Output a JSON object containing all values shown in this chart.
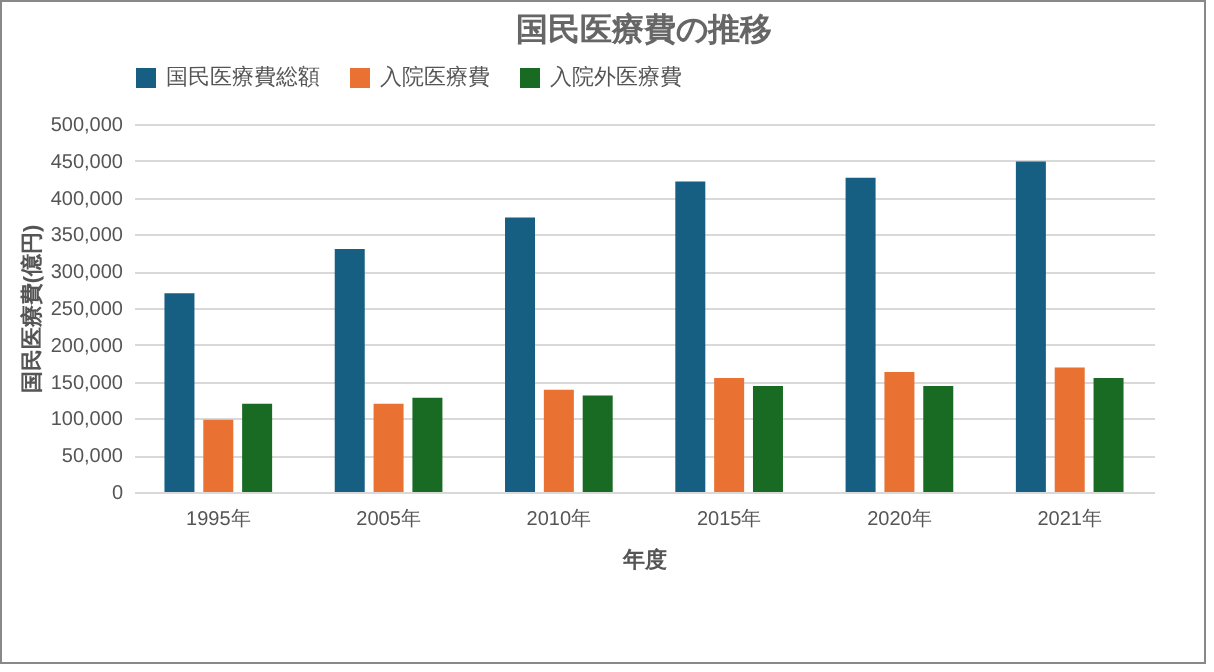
{
  "chart_data": {
    "type": "bar",
    "title": "国民医療費の推移",
    "xlabel": "年度",
    "ylabel": "国民医療費(億円)",
    "categories": [
      "1995年",
      "2005年",
      "2010年",
      "2015年",
      "2020年",
      "2021年"
    ],
    "series": [
      {
        "name": "国民医療費総額",
        "color": "#165e82",
        "values": [
          270000,
          330000,
          373000,
          422000,
          427000,
          449000
        ]
      },
      {
        "name": "入院医療費",
        "color": "#e97132",
        "values": [
          98000,
          120000,
          139000,
          155000,
          163000,
          169000
        ]
      },
      {
        "name": "入院外医療費",
        "color": "#196b24",
        "values": [
          120000,
          128000,
          131000,
          144000,
          144000,
          155000
        ]
      }
    ],
    "ylim": [
      0,
      500000
    ],
    "yticks": [
      {
        "value": 0,
        "label": "0"
      },
      {
        "value": 50000,
        "label": "50,000"
      },
      {
        "value": 100000,
        "label": "100,000"
      },
      {
        "value": 150000,
        "label": "150,000"
      },
      {
        "value": 200000,
        "label": "200,000"
      },
      {
        "value": 250000,
        "label": "250,000"
      },
      {
        "value": 300000,
        "label": "300,000"
      },
      {
        "value": 350000,
        "label": "350,000"
      },
      {
        "value": 400000,
        "label": "400,000"
      },
      {
        "value": 450000,
        "label": "450,000"
      },
      {
        "value": 500000,
        "label": "500,000"
      }
    ],
    "grid": "y",
    "legend": "top"
  }
}
